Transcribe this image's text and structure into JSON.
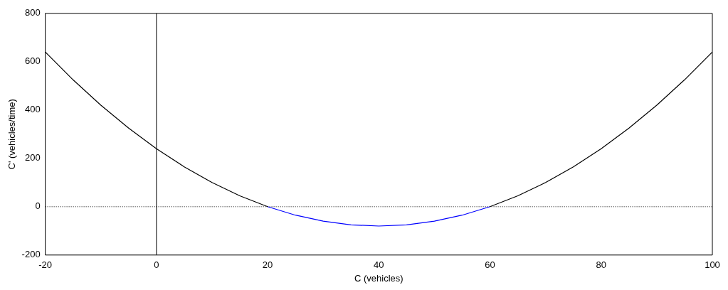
{
  "chart_data": {
    "type": "line",
    "xlabel": "C (vehicles)",
    "ylabel": "C' (vehicles/time)",
    "xlim": [
      -20,
      100
    ],
    "ylim": [
      -200,
      800
    ],
    "xticks": [
      -20,
      0,
      20,
      40,
      60,
      80,
      100
    ],
    "yticks": [
      -200,
      0,
      200,
      400,
      600,
      800
    ],
    "grid": false,
    "legend": false,
    "marker": "none",
    "line_style": "solid",
    "series": [
      {
        "color": "#000000",
        "x": [
          -20,
          -15,
          -10,
          -5,
          0,
          5,
          10,
          15,
          20
        ],
        "values": [
          640,
          525,
          420,
          325,
          240,
          165,
          100,
          45,
          0
        ]
      },
      {
        "color": "#0000ff",
        "x": [
          20,
          25,
          30,
          35,
          40,
          45,
          50,
          55,
          60
        ],
        "values": [
          0,
          -35,
          -60,
          -75,
          -80,
          -75,
          -60,
          -35,
          0
        ]
      },
      {
        "color": "#000000",
        "x": [
          60,
          65,
          70,
          75,
          80,
          85,
          90,
          95,
          100
        ],
        "values": [
          0,
          45,
          100,
          165,
          240,
          325,
          420,
          525,
          640
        ]
      }
    ],
    "ref_lines": [
      {
        "axis": "y",
        "value": 0,
        "color": "#000000",
        "line_style": "dotted"
      },
      {
        "axis": "x",
        "value": 0,
        "color": "#000000",
        "line_style": "solid"
      }
    ]
  }
}
